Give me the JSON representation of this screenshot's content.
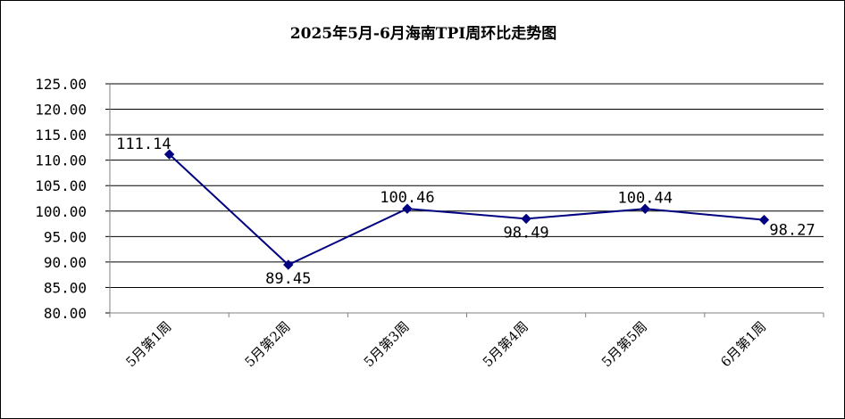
{
  "chart_data": {
    "type": "line",
    "title": "2025年5月-6月海南TPI周环比走势图",
    "categories": [
      "5月第1周",
      "5月第2周",
      "5月第3周",
      "5月第4周",
      "5月第5周",
      "6月第1周"
    ],
    "series": [
      {
        "values": [
          111.14,
          89.45,
          100.46,
          98.49,
          100.44,
          98.27
        ]
      }
    ],
    "data_labels": [
      "111.14",
      "89.45",
      "100.46",
      "98.49",
      "100.44",
      "98.27"
    ],
    "yticks": [
      "80.00",
      "85.00",
      "90.00",
      "95.00",
      "100.00",
      "105.00",
      "110.00",
      "115.00",
      "120.00",
      "125.00"
    ],
    "ylim": [
      80,
      125
    ],
    "ystep": 5,
    "grid": true,
    "legend": "none",
    "colors": {
      "line": "#000080",
      "marker": "#000080",
      "grid": "#000000",
      "text": "#000000"
    }
  }
}
